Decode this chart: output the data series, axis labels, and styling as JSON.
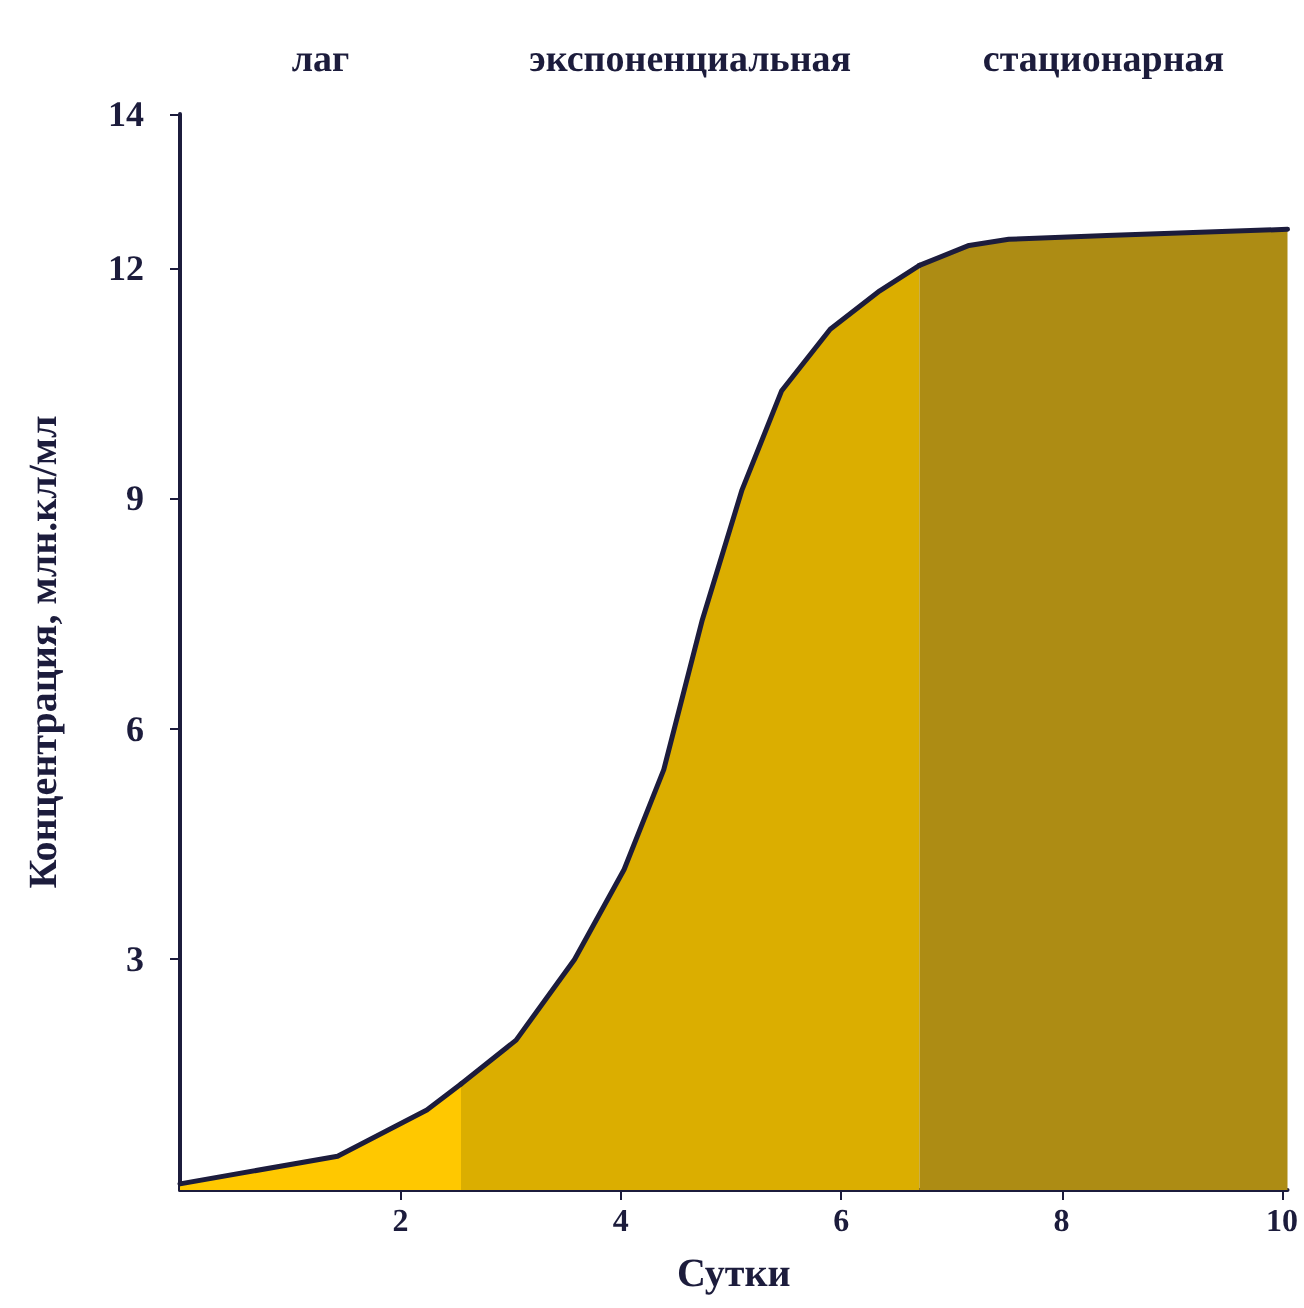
{
  "chart_data": {
    "type": "area",
    "xlabel": "Сутки",
    "ylabel": "Концентрация, млн.кл/мл",
    "xlim": [
      0,
      10.05
    ],
    "xticks": [
      2,
      4,
      6,
      8,
      10
    ],
    "ylim": [
      0,
      14
    ],
    "yticks": [
      3,
      6,
      9,
      12,
      14
    ],
    "grid": false,
    "marker": "none",
    "line_style": "solid",
    "series": [
      {
        "color": "#ffc800",
        "x": [
          0,
          1.43,
          2.24,
          2.55
        ],
        "values": [
          0.08,
          0.44,
          1.04,
          1.38
        ]
      },
      {
        "color": "#dbae00",
        "x": [
          2.55,
          3.05,
          3.58,
          4.03,
          4.39,
          4.74,
          5.1,
          5.46,
          5.9,
          6.35,
          6.71
        ],
        "values": [
          1.38,
          1.95,
          3.0,
          4.17,
          5.47,
          7.42,
          9.11,
          10.4,
          11.2,
          11.7,
          12.03
        ]
      },
      {
        "color": "#ad8c14",
        "x": [
          6.71,
          7.16,
          7.52,
          8.41,
          10.05
        ],
        "values": [
          12.03,
          12.29,
          12.37,
          12.42,
          12.5
        ]
      }
    ],
    "annotations": [
      "лаг",
      "экспоненциальная",
      "стационарная"
    ]
  }
}
